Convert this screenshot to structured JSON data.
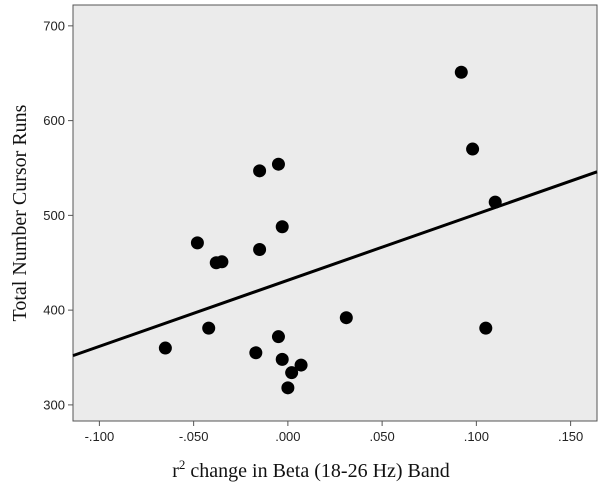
{
  "chart_data": {
    "type": "scatter",
    "title": "",
    "xlabel": "r² change in Beta (18-26 Hz) Band",
    "xlabel_base": "r",
    "xlabel_sup": "2",
    "xlabel_rest": " change in Beta (18-26 Hz) Band",
    "ylabel": "Total Number Cursor Runs",
    "xlim": [
      -0.114,
      0.164
    ],
    "ylim": [
      283,
      722
    ],
    "x_ticks": [
      -0.1,
      -0.05,
      0.0,
      0.05,
      0.1,
      0.15
    ],
    "x_tick_labels": [
      "-.100",
      "-.050",
      ".000",
      ".050",
      ".100",
      ".150"
    ],
    "y_ticks": [
      300,
      400,
      500,
      600,
      700
    ],
    "y_tick_labels": [
      "300",
      "400",
      "500",
      "600",
      "700"
    ],
    "grid": false,
    "background": "#ebebeb",
    "point_color": "#000000",
    "fit_line": {
      "x": [
        -0.114,
        0.164
      ],
      "y": [
        352,
        546
      ]
    },
    "points": [
      {
        "x": -0.065,
        "y": 360
      },
      {
        "x": -0.048,
        "y": 471
      },
      {
        "x": -0.042,
        "y": 381
      },
      {
        "x": -0.038,
        "y": 450
      },
      {
        "x": -0.035,
        "y": 451
      },
      {
        "x": -0.017,
        "y": 355
      },
      {
        "x": -0.015,
        "y": 547
      },
      {
        "x": -0.015,
        "y": 464
      },
      {
        "x": -0.005,
        "y": 554
      },
      {
        "x": -0.005,
        "y": 372
      },
      {
        "x": -0.003,
        "y": 488
      },
      {
        "x": -0.003,
        "y": 348
      },
      {
        "x": 0.0,
        "y": 318
      },
      {
        "x": 0.002,
        "y": 334
      },
      {
        "x": 0.007,
        "y": 342
      },
      {
        "x": 0.031,
        "y": 392
      },
      {
        "x": 0.092,
        "y": 651
      },
      {
        "x": 0.098,
        "y": 570
      },
      {
        "x": 0.105,
        "y": 381
      },
      {
        "x": 0.11,
        "y": 514
      }
    ]
  }
}
